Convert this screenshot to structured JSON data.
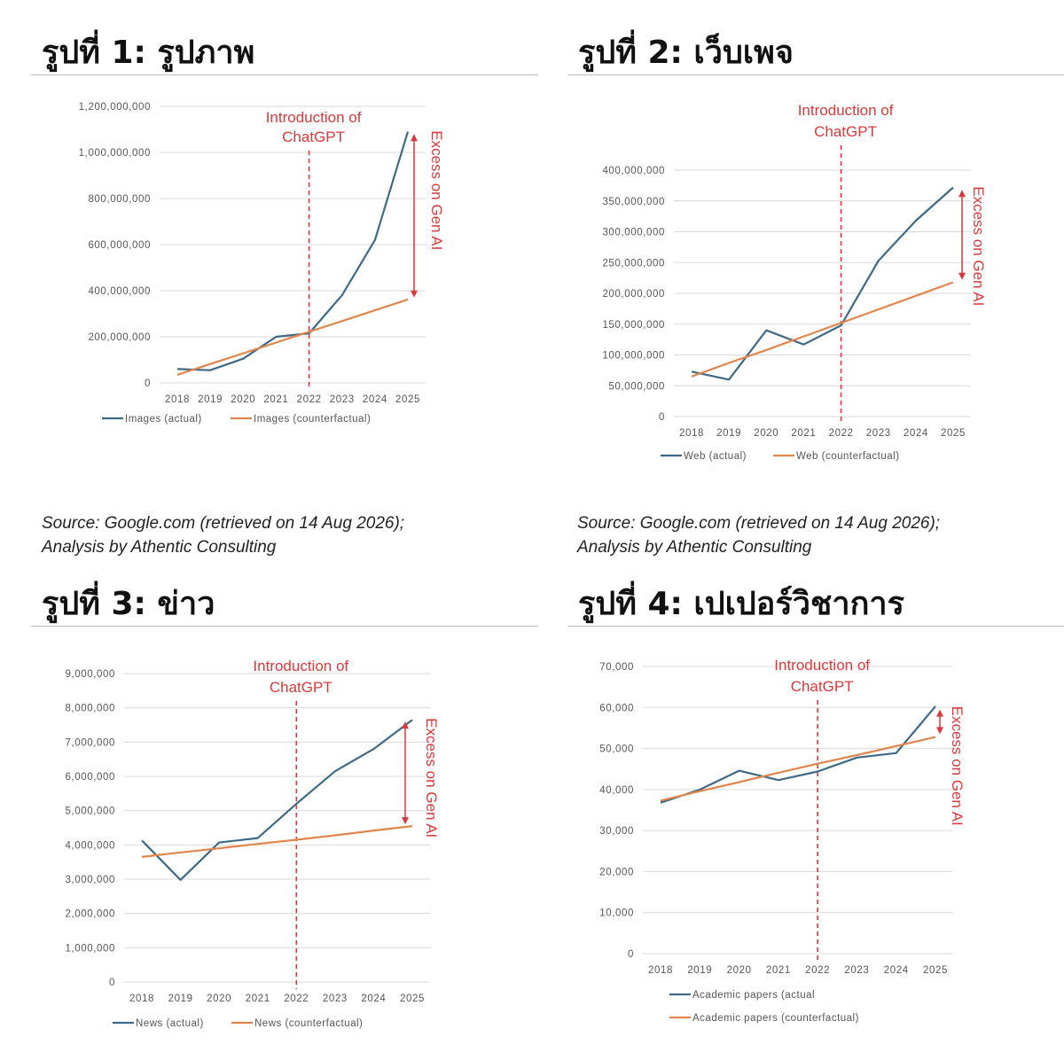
{
  "colors": {
    "actual": "#3f6a86",
    "counterfactual": "#e0864c",
    "annotation": "#d9393b",
    "grid": "#d9d9d9"
  },
  "sources": [
    {
      "line1": "Source: Google.com (retrieved on 14 Aug 2026);",
      "line2": "Analysis by Athentic Consulting"
    },
    {
      "line1": "Source: Google.com (retrieved on 14 Aug 2026);",
      "line2": "Analysis by Athentic Consulting"
    }
  ],
  "chart_data": [
    {
      "type": "line",
      "title": "รูปที่ 1: รูปภาพ",
      "categories": [
        "2018",
        "2019",
        "2020",
        "2021",
        "2022",
        "2023",
        "2024",
        "2025"
      ],
      "ylim": [
        0,
        1200000000
      ],
      "yticks": [
        "0",
        "200,000,000",
        "400,000,000",
        "600,000,000",
        "800,000,000",
        "1,000,000,000",
        "1,200,000,000"
      ],
      "series": [
        {
          "name": "Images (actual)",
          "values": [
            60000000,
            55000000,
            105000000,
            200000000,
            215000000,
            380000000,
            620000000,
            1090000000
          ]
        },
        {
          "name": "Images (counterfactual)",
          "values": [
            35000000,
            82000000,
            128000000,
            175000000,
            222000000,
            268000000,
            315000000,
            362000000
          ]
        }
      ],
      "vline_category": "2022",
      "vline_label": [
        "Introduction of",
        "ChatGPT"
      ],
      "excess_label": "Excess on Gen AI",
      "excess_range": [
        370000000,
        1080000000
      ],
      "grid": true,
      "legend_position": "bottom"
    },
    {
      "type": "line",
      "title": "รูปที่ 2: เว็บเพจ",
      "categories": [
        "2018",
        "2019",
        "2020",
        "2021",
        "2022",
        "2023",
        "2024",
        "2025"
      ],
      "ylim": [
        0,
        400000000
      ],
      "yticks": [
        "0",
        "50,000,000",
        "100,000,000",
        "150,000,000",
        "200,000,000",
        "250,000,000",
        "300,000,000",
        "350,000,000",
        "400,000,000"
      ],
      "series": [
        {
          "name": "Web (actual)",
          "values": [
            73000000,
            60000000,
            140000000,
            117000000,
            148000000,
            253000000,
            318000000,
            372000000
          ]
        },
        {
          "name": "Web (counterfactual)",
          "values": [
            65000000,
            87000000,
            108000000,
            130000000,
            152000000,
            174000000,
            196000000,
            218000000
          ]
        }
      ],
      "vline_category": "2022",
      "vline_label": [
        "Introduction of",
        "ChatGPT"
      ],
      "excess_label": "Excess on Gen AI",
      "excess_range": [
        222000000,
        368000000
      ],
      "grid": true,
      "legend_position": "bottom"
    },
    {
      "type": "line",
      "title": "รูปที่ 3: ข่าว",
      "categories": [
        "2018",
        "2019",
        "2020",
        "2021",
        "2022",
        "2023",
        "2024",
        "2025"
      ],
      "ylim": [
        0,
        9000000
      ],
      "yticks": [
        "0",
        "1,000,000",
        "2,000,000",
        "3,000,000",
        "4,000,000",
        "5,000,000",
        "6,000,000",
        "7,000,000",
        "8,000,000",
        "9,000,000"
      ],
      "series": [
        {
          "name": "News (actual)",
          "values": [
            4130000,
            2980000,
            4070000,
            4200000,
            5200000,
            6150000,
            6800000,
            7650000
          ]
        },
        {
          "name": "News (counterfactual)",
          "values": [
            3650000,
            3780000,
            3900000,
            4030000,
            4150000,
            4280000,
            4420000,
            4550000
          ]
        }
      ],
      "vline_category": "2022",
      "vline_label": [
        "Introduction of",
        "ChatGPT"
      ],
      "excess_label": "Excess on Gen AI",
      "excess_range": [
        4600000,
        7600000
      ],
      "grid": true,
      "legend_position": "bottom"
    },
    {
      "type": "line",
      "title": "รูปที่ 4: เปเปอร์วิชาการ",
      "categories": [
        "2018",
        "2019",
        "2020",
        "2021",
        "2022",
        "2023",
        "2024",
        "2025"
      ],
      "ylim": [
        0,
        70000
      ],
      "yticks": [
        "0",
        "10,000",
        "20,000",
        "30,000",
        "40,000",
        "50,000",
        "60,000",
        "70,000"
      ],
      "series": [
        {
          "name": "Academic papers (actual",
          "values": [
            36800,
            40000,
            44600,
            42300,
            44400,
            47800,
            48900,
            60300
          ]
        },
        {
          "name": "Academic papers (counterfactual)",
          "values": [
            37300,
            39600,
            41800,
            44100,
            46300,
            48400,
            50600,
            52800
          ]
        }
      ],
      "vline_category": "2022",
      "vline_label": [
        "Introduction of",
        "ChatGPT"
      ],
      "excess_label": "Excess on Gen AI",
      "excess_range": [
        53500,
        59500
      ],
      "grid": true,
      "legend_position": "bottom"
    }
  ]
}
